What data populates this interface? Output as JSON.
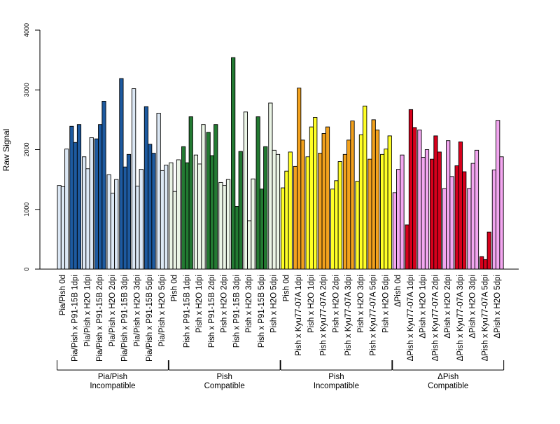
{
  "chart_data": {
    "type": "bar",
    "ylabel": "Raw Signal",
    "ylim": [
      0,
      4000
    ],
    "yticks": [
      0,
      1000,
      2000,
      3000,
      4000
    ],
    "grid": false,
    "legend": "none",
    "categories": [
      "Pia/Pish 0d",
      "Pia/Pish x P91-15B 1dpi",
      "Pia/Pish x H2O 1dpi",
      "Pia/Pish x P91-15B 2dpi",
      "Pia/Pish x H2O 2dpi",
      "Pia/Pish x P91-15B 3dpi",
      "Pia/Pish x H2O 3dpi",
      "Pia/Pish x P91-15B 5dpi",
      "Pia/Pish x H2O 5dpi",
      "Pish 0d",
      "Pish x P91-15B 1dpi",
      "Pish x H2O 1dpi",
      "Pish x P91-15B 2dpi",
      "Pish x H2O 2dpi",
      "Pish x P91-15B 3dpi",
      "Pish x H2O 3dpi",
      "Pish x P91-15B 5dpi",
      "Pish x H2O 5dpi",
      "Pish 0d",
      "Pish x Kyu77-07A 1dpi",
      "Pish x H2O 1dpi",
      "Pish x Kyu77-07A 2dpi",
      "Pish x H2O 2dpi",
      "Pish x Kyu77-07A 3dpi",
      "Pish x H2O 3dpi",
      "Pish x Kyu77-07A 5dpi",
      "Pish x H2O 5dpi",
      "ΔPish 0d",
      "ΔPish x Kyu77-07A 1dpi",
      "ΔPish x H2O 1dpi",
      "ΔPish x Kyu77-07A 2dpi",
      "ΔPish x H2O 2dpi",
      "ΔPish x Kyu77-07A 3dpi",
      "ΔPish x H2O 3dpi",
      "ΔPish x Kyu77-07A 5dpi",
      "ΔPish x H2O 5dpi"
    ],
    "bar_colors": [
      "#dce8f5",
      "#1d5aa0",
      "#dce8f5",
      "#1d5aa0",
      "#dce8f5",
      "#1d5aa0",
      "#dce8f5",
      "#1d5aa0",
      "#dce8f5",
      "#ebf5e6",
      "#237a32",
      "#ebf5e6",
      "#237a32",
      "#ebf5e6",
      "#237a32",
      "#ebf5e6",
      "#237a32",
      "#ebf5e6",
      "#ffff26",
      "#f2a11d",
      "#ffff26",
      "#f2a11d",
      "#ffff26",
      "#f2a11d",
      "#ffff26",
      "#f2a11d",
      "#ffff26",
      "#f3a6f0",
      "#d7001c",
      "#f3a6f0",
      "#d7001c",
      "#f3a6f0",
      "#d7001c",
      "#f3a6f0",
      "#d7001c",
      "#f3a6f0"
    ],
    "values": [
      [
        1400,
        1380,
        2010
      ],
      [
        2390,
        2120,
        2420
      ],
      [
        1880,
        1680,
        2200
      ],
      [
        2180,
        2420,
        2810
      ],
      [
        1580,
        1270,
        1500
      ],
      [
        3190,
        1710,
        1920
      ],
      [
        3020,
        1390,
        1670
      ],
      [
        2720,
        2090,
        1940
      ],
      [
        2610,
        1650,
        1740
      ],
      [
        1780,
        1300,
        1830
      ],
      [
        2050,
        1780,
        2550
      ],
      [
        1910,
        1760,
        2420
      ],
      [
        2290,
        1900,
        2420
      ],
      [
        1450,
        1400,
        1500
      ],
      [
        3540,
        1050,
        1970
      ],
      [
        2630,
        810,
        1510
      ],
      [
        2550,
        1340,
        2050
      ],
      [
        2780,
        1990,
        1920
      ],
      [
        1360,
        1640,
        1960
      ],
      [
        1720,
        3030,
        2160
      ],
      [
        1880,
        2380,
        2540
      ],
      [
        1940,
        2270,
        2380
      ],
      [
        1340,
        1480,
        1800
      ],
      [
        1920,
        2160,
        2480
      ],
      [
        1470,
        2250,
        2730
      ],
      [
        1840,
        2500,
        2330
      ],
      [
        1920,
        2010,
        2230
      ],
      [
        1280,
        1670,
        1910
      ],
      [
        740,
        2670,
        2370
      ],
      [
        2330,
        1870,
        2000
      ],
      [
        1840,
        2230,
        1960
      ],
      [
        1350,
        2150,
        1550
      ],
      [
        1730,
        2130,
        1630
      ],
      [
        1350,
        1770,
        1990
      ],
      [
        210,
        160,
        620
      ],
      [
        1660,
        2490,
        1880
      ]
    ],
    "groups": [
      {
        "line1": "Pia/Pish",
        "line2": "Incompatible",
        "count": 9
      },
      {
        "line1": "Pish",
        "line2": "Compatible",
        "count": 9
      },
      {
        "line1": "Pish",
        "line2": "Incompatible",
        "count": 9
      },
      {
        "line1": "ΔPish",
        "line2": "Compatible",
        "count": 9
      }
    ]
  }
}
